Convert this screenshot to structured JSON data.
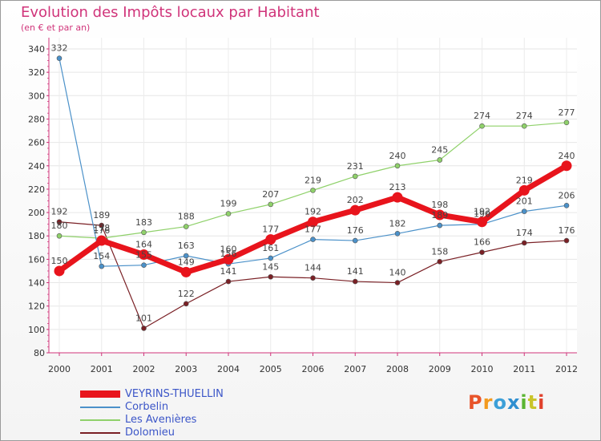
{
  "header": {
    "title": "Evolution des Impôts locaux par Habitant",
    "subtitle": "(en € et par an)"
  },
  "logo": {
    "text": "Proxiti",
    "colors": [
      "#e8542a",
      "#f39a1e",
      "#3da0d8",
      "#2f8fd0",
      "#5ab532",
      "#c9c42a",
      "#e0412c"
    ]
  },
  "chart_data": {
    "type": "line",
    "title": "Evolution des Impôts locaux par Habitant",
    "subtitle": "(en € et par an)",
    "xlabel": "",
    "ylabel": "",
    "ylim": [
      80,
      340
    ],
    "yticks": [
      80,
      100,
      120,
      140,
      160,
      180,
      200,
      220,
      240,
      260,
      280,
      300,
      320,
      340
    ],
    "categories": [
      "2000",
      "2001",
      "2002",
      "2003",
      "2004",
      "2005",
      "2006",
      "2007",
      "2008",
      "2009",
      "2010",
      "2011",
      "2012"
    ],
    "series": [
      {
        "name": "VEYRINS-THUELLIN",
        "color": "#e8141c",
        "values": [
          150,
          176,
          164,
          149,
          160,
          177,
          192,
          202,
          213,
          198,
          192,
          219,
          240
        ]
      },
      {
        "name": "Corbelin",
        "color": "#4b91c9",
        "values": [
          332,
          154,
          155,
          163,
          156,
          161,
          177,
          176,
          182,
          189,
          190,
          201,
          206
        ]
      },
      {
        "name": "Les Avenières",
        "color": "#8fd16a",
        "values": [
          180,
          178,
          183,
          188,
          199,
          207,
          219,
          231,
          240,
          245,
          274,
          274,
          277
        ]
      },
      {
        "name": "Dolomieu",
        "color": "#7a2025",
        "values": [
          192,
          189,
          101,
          122,
          141,
          145,
          144,
          141,
          140,
          158,
          166,
          174,
          176
        ]
      }
    ],
    "legend_position": "bottom-left"
  }
}
